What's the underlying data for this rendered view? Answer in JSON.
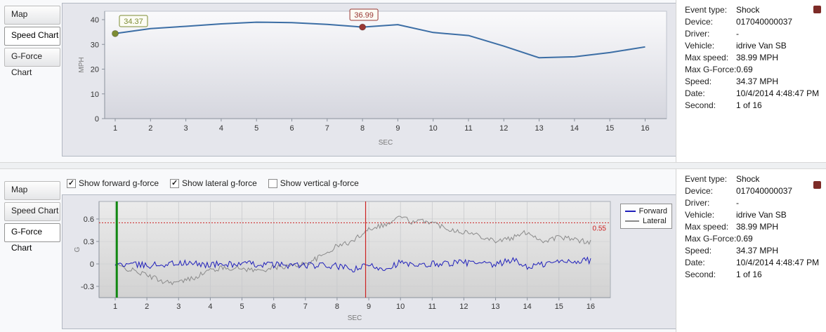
{
  "tabs": {
    "items": [
      "Map",
      "Speed Chart",
      "G-Force Chart"
    ],
    "top_selected": "Speed Chart",
    "bottom_selected": "G-Force Chart"
  },
  "event_info": {
    "rows": [
      {
        "label": "Event type:",
        "value": "Shock"
      },
      {
        "label": "Device:",
        "value": "017040000037"
      },
      {
        "label": "Driver:",
        "value": "-"
      },
      {
        "label": "Vehicle:",
        "value": "idrive Van SB"
      },
      {
        "label": "Max speed:",
        "value": "38.99 MPH"
      },
      {
        "label": "Max G-Force:",
        "value": "0.69"
      },
      {
        "label": "Speed:",
        "value": "34.37 MPH"
      },
      {
        "label": "Date:",
        "value": "10/4/2014 4:48:47 PM"
      },
      {
        "label": "Second:",
        "value": "1 of 16"
      }
    ]
  },
  "gforce_controls": {
    "checkboxes": [
      {
        "label": "Show forward g-force",
        "checked": true
      },
      {
        "label": "Show lateral g-force",
        "checked": true
      },
      {
        "label": "Show vertical g-force",
        "checked": false
      }
    ]
  },
  "chart_data": [
    {
      "type": "line",
      "title": "Speed Chart",
      "xlabel": "SEC",
      "ylabel": "MPH",
      "xticks": [
        1,
        2,
        3,
        4,
        5,
        6,
        7,
        8,
        9,
        10,
        11,
        12,
        13,
        14,
        15,
        16
      ],
      "yticks": [
        0,
        10,
        20,
        30,
        40
      ],
      "xlim": [
        0.7,
        16.6
      ],
      "ylim": [
        0,
        43
      ],
      "grid": false,
      "line_color": "#3c6ea5",
      "x": [
        1,
        2,
        3,
        4,
        5,
        6,
        7,
        8,
        9,
        10,
        11,
        12,
        13,
        14,
        15,
        16
      ],
      "values": [
        34.37,
        36.4,
        37.3,
        38.3,
        38.99,
        38.8,
        38.1,
        36.99,
        38.0,
        34.8,
        33.6,
        29.3,
        24.6,
        25.0,
        26.7,
        29.0
      ],
      "markers": [
        {
          "x": 1,
          "y": 34.37,
          "label": "34.37",
          "color": "#7d8c33"
        },
        {
          "x": 8,
          "y": 36.99,
          "label": "36.99",
          "color": "#993733"
        }
      ]
    },
    {
      "type": "line",
      "title": "G-Force Chart",
      "xlabel": "SEC",
      "ylabel": "G",
      "xticks": [
        1,
        2,
        3,
        4,
        5,
        6,
        7,
        8,
        9,
        10,
        11,
        12,
        13,
        14,
        15,
        16
      ],
      "yticks": [
        -0.3,
        0,
        0.3,
        0.6
      ],
      "xlim": [
        0.5,
        16.6
      ],
      "ylim": [
        -0.45,
        0.83
      ],
      "grid": true,
      "legend_position": "right",
      "series": [
        {
          "name": "Forward",
          "color": "#2020bb",
          "noise": 0.045,
          "x": [
            1,
            2,
            3,
            4,
            5,
            6,
            7,
            8,
            8.5,
            9,
            9.5,
            10,
            10.5,
            11,
            12,
            13,
            13.5,
            14,
            15,
            16
          ],
          "values": [
            0,
            -0.02,
            0.01,
            -0.01,
            0,
            -0.01,
            -0.02,
            -0.03,
            -0.08,
            -0.02,
            -0.06,
            0.02,
            -0.04,
            0,
            0.02,
            -0.02,
            0.06,
            -0.04,
            0.03,
            0.05
          ]
        },
        {
          "name": "Lateral",
          "color": "#8a8a8a",
          "noise": 0.035,
          "x": [
            1,
            1.5,
            2,
            2.5,
            3,
            3.5,
            4,
            4.5,
            5,
            5.5,
            6,
            6.5,
            7,
            7.5,
            8,
            8.5,
            8.9,
            9.2,
            9.6,
            10,
            10.4,
            10.8,
            11.2,
            11.6,
            12,
            12.5,
            13,
            13.5,
            14,
            14.5,
            15,
            15.5,
            16
          ],
          "values": [
            -0.02,
            -0.08,
            -0.15,
            -0.23,
            -0.25,
            -0.18,
            -0.08,
            -0.05,
            -0.06,
            -0.09,
            -0.05,
            -0.03,
            0.0,
            0.1,
            0.24,
            0.3,
            0.45,
            0.5,
            0.53,
            0.64,
            0.55,
            0.58,
            0.52,
            0.46,
            0.43,
            0.38,
            0.31,
            0.34,
            0.43,
            0.3,
            0.36,
            0.32,
            0.29
          ]
        }
      ],
      "threshold_line": {
        "y": 0.55,
        "label": "0.55",
        "color": "#cc2222"
      },
      "vlines": [
        {
          "x": 1.05,
          "color": "#118811",
          "width": 3,
          "name": "current-second-line"
        },
        {
          "x": 8.9,
          "color": "#cc2222",
          "width": 1.2,
          "name": "event-marker-line"
        }
      ]
    }
  ]
}
